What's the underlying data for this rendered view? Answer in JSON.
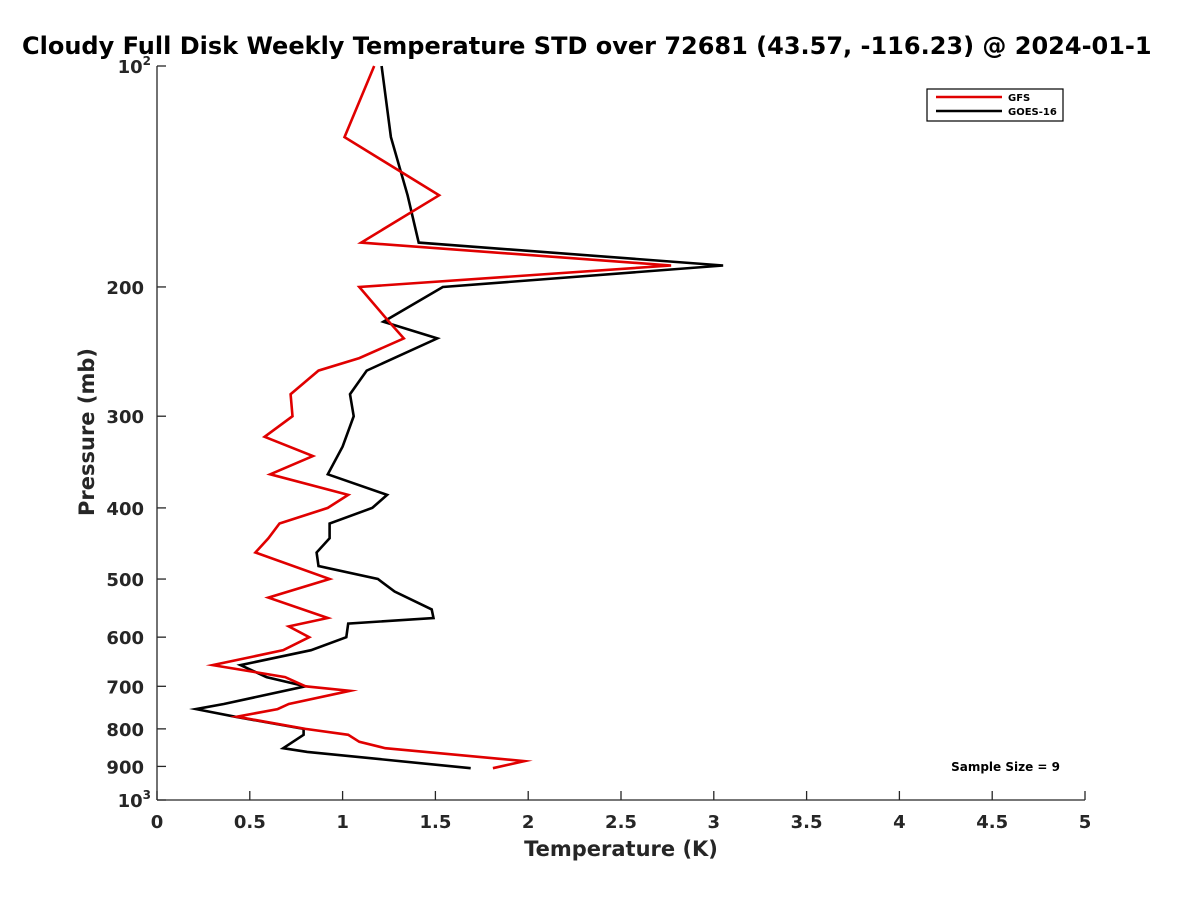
{
  "chart_data": {
    "type": "line",
    "title": "Cloudy Full Disk Weekly Temperature STD over 72681 (43.57, -116.23) @ 2024-01-1",
    "xlabel": "Temperature (K)",
    "ylabel": "Pressure (mb)",
    "xlim": [
      0,
      5
    ],
    "ylim": [
      1000,
      100
    ],
    "y_scale": "log",
    "grid": false,
    "legend_position": "top-right",
    "x_ticks": [
      "0",
      "0.5",
      "1",
      "1.5",
      "2",
      "2.5",
      "3",
      "3.5",
      "4",
      "4.5",
      "5"
    ],
    "y_ticks": [
      {
        "value": 100,
        "label": "10",
        "sup": "2"
      },
      {
        "value": 200,
        "label": "200",
        "sup": ""
      },
      {
        "value": 300,
        "label": "300",
        "sup": ""
      },
      {
        "value": 400,
        "label": "400",
        "sup": ""
      },
      {
        "value": 500,
        "label": "500",
        "sup": ""
      },
      {
        "value": 600,
        "label": "600",
        "sup": ""
      },
      {
        "value": 700,
        "label": "700",
        "sup": ""
      },
      {
        "value": 800,
        "label": "800",
        "sup": ""
      },
      {
        "value": 900,
        "label": "900",
        "sup": ""
      },
      {
        "value": 1000,
        "label": "10",
        "sup": "3"
      }
    ],
    "series": [
      {
        "name": "GFS",
        "color": "#e00000",
        "points": [
          [
            1.17,
            100
          ],
          [
            1.01,
            125
          ],
          [
            1.52,
            150
          ],
          [
            1.1,
            174
          ],
          [
            2.77,
            187
          ],
          [
            1.09,
            200
          ],
          [
            1.25,
            223
          ],
          [
            1.33,
            235
          ],
          [
            1.09,
            250
          ],
          [
            0.87,
            260
          ],
          [
            0.72,
            280
          ],
          [
            0.73,
            300
          ],
          [
            0.58,
            320
          ],
          [
            0.84,
            340
          ],
          [
            0.61,
            360
          ],
          [
            1.03,
            384
          ],
          [
            0.92,
            400
          ],
          [
            0.66,
            420
          ],
          [
            0.6,
            440
          ],
          [
            0.53,
            460
          ],
          [
            0.93,
            500
          ],
          [
            0.6,
            530
          ],
          [
            0.92,
            565
          ],
          [
            0.71,
            580
          ],
          [
            0.82,
            600
          ],
          [
            0.68,
            625
          ],
          [
            0.3,
            655
          ],
          [
            0.69,
            680
          ],
          [
            0.8,
            700
          ],
          [
            1.04,
            710
          ],
          [
            0.71,
            740
          ],
          [
            0.65,
            752
          ],
          [
            0.43,
            770
          ],
          [
            0.8,
            800
          ],
          [
            1.03,
            815
          ],
          [
            1.09,
            833
          ],
          [
            1.23,
            850
          ],
          [
            1.98,
            885
          ],
          [
            1.81,
            905
          ]
        ]
      },
      {
        "name": "GOES-16",
        "color": "#000000",
        "points": [
          [
            1.21,
            100
          ],
          [
            1.26,
            125
          ],
          [
            1.35,
            150
          ],
          [
            1.41,
            174
          ],
          [
            3.05,
            187
          ],
          [
            1.54,
            200
          ],
          [
            1.22,
            223
          ],
          [
            1.51,
            235
          ],
          [
            1.13,
            260
          ],
          [
            1.04,
            280
          ],
          [
            1.06,
            300
          ],
          [
            1.0,
            330
          ],
          [
            0.92,
            360
          ],
          [
            1.24,
            384
          ],
          [
            1.16,
            400
          ],
          [
            0.93,
            420
          ],
          [
            0.93,
            440
          ],
          [
            0.86,
            460
          ],
          [
            0.87,
            480
          ],
          [
            1.19,
            500
          ],
          [
            1.28,
            520
          ],
          [
            1.48,
            550
          ],
          [
            1.49,
            565
          ],
          [
            1.03,
            575
          ],
          [
            1.02,
            600
          ],
          [
            0.83,
            625
          ],
          [
            0.45,
            655
          ],
          [
            0.59,
            680
          ],
          [
            0.8,
            700
          ],
          [
            0.36,
            740
          ],
          [
            0.21,
            752
          ],
          [
            0.42,
            770
          ],
          [
            0.79,
            800
          ],
          [
            0.79,
            815
          ],
          [
            0.68,
            850
          ],
          [
            0.81,
            860
          ],
          [
            1.69,
            905
          ]
        ]
      }
    ],
    "annotation": "Sample Size = 9"
  }
}
